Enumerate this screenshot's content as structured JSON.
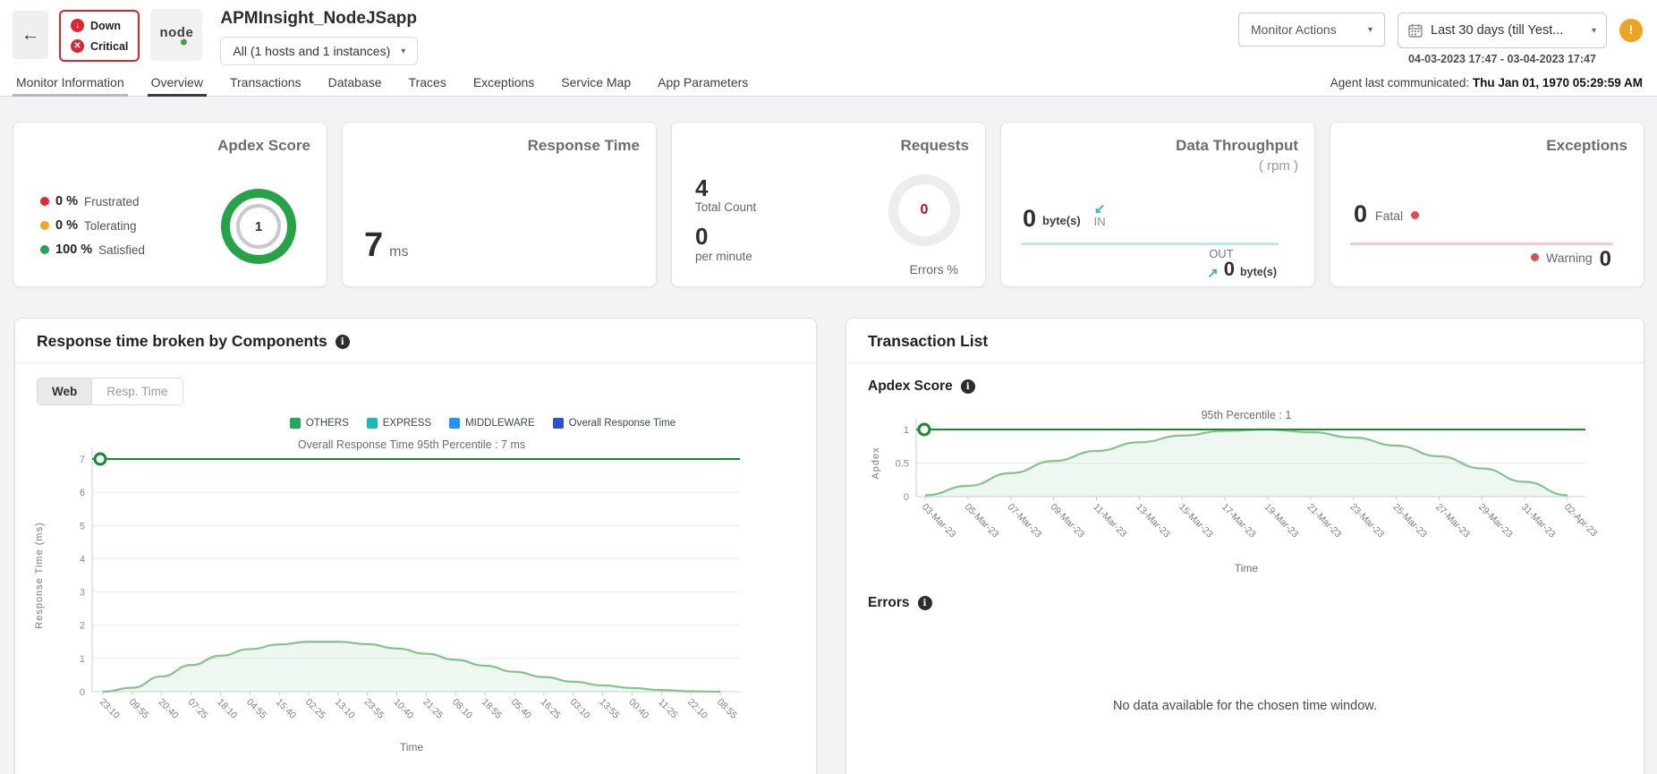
{
  "header": {
    "back": "←",
    "status_badges": [
      {
        "label": "Down",
        "icon": "arrow-down-circle",
        "color": "#e02430"
      },
      {
        "label": "Critical",
        "icon": "x-circle",
        "color": "#e02430"
      }
    ],
    "app_icon_text": "node",
    "title": "APMInsight_NodeJSapp",
    "scope_selector": "All (1 hosts and 1 instances)",
    "monitor_actions_label": "Monitor Actions",
    "time_range_label": "Last 30 days (till Yest...",
    "time_range_detail": "04-03-2023 17:47 - 03-04-2023 17:47",
    "alert_badge": "!",
    "alert_color": "#f0a321",
    "agent_label": "Agent last communicated:",
    "agent_value": "Thu Jan 01, 1970 05:29:59 AM"
  },
  "icons": {
    "info": "i",
    "caret": "▾",
    "arrow_in": "↙",
    "arrow_out": "↗",
    "down": "↓",
    "critical": "✕",
    "hexagon": "⬢"
  },
  "tabs": [
    {
      "label": "Monitor Information",
      "underline": "gray"
    },
    {
      "label": "Overview",
      "underline": "dark"
    },
    {
      "label": "Transactions"
    },
    {
      "label": "Database"
    },
    {
      "label": "Traces"
    },
    {
      "label": "Exceptions"
    },
    {
      "label": "Service Map"
    },
    {
      "label": "App Parameters"
    }
  ],
  "cards": {
    "apdex": {
      "title": "Apdex Score",
      "metrics": [
        {
          "value": "0 %",
          "label": "Frustrated",
          "color": "#e8272e"
        },
        {
          "value": "0 %",
          "label": "Tolerating",
          "color": "#f5a623"
        },
        {
          "value": "100 %",
          "label": "Satisfied",
          "color": "#27a05a"
        }
      ],
      "gauge_value": "1",
      "gauge_color": "#27a347"
    },
    "response_time": {
      "title": "Response Time",
      "value": "7",
      "unit": "ms"
    },
    "requests": {
      "title": "Requests",
      "total_count": "4",
      "total_label": "Total Count",
      "per_minute": "0",
      "per_minute_label": "per minute",
      "errors_value": "0",
      "errors_label": "Errors %",
      "errors_color": "#ad1217"
    },
    "data_throughput": {
      "title": "Data Throughput",
      "subtitle": "( rpm )",
      "in_value": "0",
      "in_unit": "byte(s)",
      "in_label": "IN",
      "out_label": "OUT",
      "out_value": "0",
      "out_unit": "byte(s)",
      "accent_color": "#2bbcb5"
    },
    "exceptions": {
      "title": "Exceptions",
      "fatal_value": "0",
      "fatal_label": "Fatal",
      "warning_label": "Warning",
      "warning_value": "0",
      "accent_color": "#e8474f"
    }
  },
  "left_panel": {
    "title": "Response time broken by Components",
    "toggle": [
      "Web",
      "Resp. Time"
    ],
    "active_toggle": "Web"
  },
  "right_panel": {
    "title": "Transaction List",
    "sections": {
      "apdex": "Apdex Score",
      "errors": "Errors"
    },
    "no_data_message": "No data available for the chosen time window."
  },
  "chart_data": [
    {
      "id": "components-response-time",
      "type": "area",
      "annotation": "Overall Response Time 95th Percentile : 7 ms",
      "percentile_line": 7,
      "xlabel": "Time",
      "ylabel": "Response Time (ms)",
      "ylim": [
        0,
        7
      ],
      "yticks": [
        0,
        1,
        2,
        3,
        4,
        5,
        6,
        7
      ],
      "grid": true,
      "legend_position": "top",
      "legend": [
        {
          "label": "OTHERS",
          "color": "#26a65b"
        },
        {
          "label": "EXPRESS",
          "color": "#17bcb4"
        },
        {
          "label": "MIDDLEWARE",
          "color": "#1e97f2"
        },
        {
          "label": "Overall Response Time",
          "color": "#2b50d4"
        }
      ],
      "categories": [
        "23:10",
        "09:55",
        "20:40",
        "07:25",
        "18:10",
        "04:55",
        "15:40",
        "02:25",
        "13:10",
        "23:55",
        "10:40",
        "21:25",
        "08:10",
        "18:55",
        "05:40",
        "16:25",
        "03:10",
        "13:55",
        "00:40",
        "11:25",
        "22:10",
        "08:55"
      ],
      "series": [
        {
          "name": "Overall Response Time",
          "values": [
            0,
            0.12,
            0.46,
            0.8,
            1.08,
            1.28,
            1.42,
            1.5,
            1.5,
            1.43,
            1.3,
            1.14,
            0.96,
            0.78,
            0.6,
            0.44,
            0.3,
            0.19,
            0.11,
            0.05,
            0.01,
            0
          ]
        }
      ],
      "line_color": "#82c48c",
      "fill_color": "rgba(70,165,90,0.09)",
      "percentile_color": "#188a2f"
    },
    {
      "id": "transaction-apdex",
      "type": "area",
      "annotation": "95th Percentile : 1",
      "percentile_line": 1,
      "xlabel": "Time",
      "ylabel": "Apdex",
      "ylim": [
        0,
        1
      ],
      "yticks": [
        0,
        0.5,
        1
      ],
      "grid": true,
      "categories": [
        "03-Mar-23",
        "05-Mar-23",
        "07-Mar-23",
        "09-Mar-23",
        "11-Mar-23",
        "13-Mar-23",
        "15-Mar-23",
        "17-Mar-23",
        "19-Mar-23",
        "21-Mar-23",
        "23-Mar-23",
        "25-Mar-23",
        "27-Mar-23",
        "29-Mar-23",
        "31-Mar-23",
        "02-Apr-23"
      ],
      "series": [
        {
          "name": "Apdex",
          "values": [
            0.02,
            0.16,
            0.35,
            0.53,
            0.68,
            0.81,
            0.91,
            0.98,
            1.0,
            0.96,
            0.88,
            0.76,
            0.6,
            0.42,
            0.22,
            0.02
          ]
        }
      ],
      "line_color": "#82c48c",
      "fill_color": "rgba(70,165,90,0.09)",
      "percentile_color": "#188a2f"
    }
  ]
}
